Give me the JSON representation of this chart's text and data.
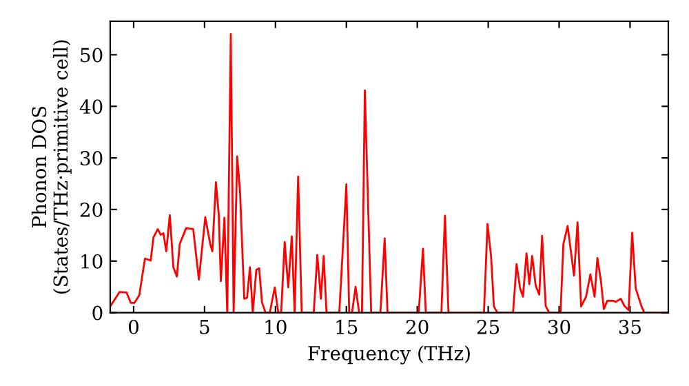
{
  "chart_data": {
    "type": "line",
    "xlabel": "Frequency (THz)",
    "ylabel": "Phonon DOS\n(States/THz·primitive cell)",
    "xlim": [
      -1.65,
      37.7
    ],
    "ylim": [
      0,
      56.5
    ],
    "xticks": [
      0,
      5,
      10,
      15,
      20,
      25,
      30,
      35
    ],
    "yticks": [
      0,
      10,
      20,
      30,
      40,
      50
    ],
    "grid": false,
    "marker": "none",
    "line_style": "solid",
    "series": [
      {
        "color": "#ff0000",
        "x": [
          -1.65,
          -1.0,
          -0.5,
          -0.2,
          0.05,
          0.4,
          0.8,
          1.2,
          1.4,
          1.7,
          1.9,
          2.1,
          2.3,
          2.55,
          2.8,
          3.05,
          3.25,
          3.7,
          4.2,
          4.6,
          5.05,
          5.4,
          5.55,
          5.8,
          6.0,
          6.15,
          6.4,
          6.6,
          6.85,
          7.05,
          7.3,
          7.5,
          7.8,
          8.0,
          8.2,
          8.4,
          8.65,
          8.85,
          9.05,
          9.3,
          9.6,
          9.95,
          10.2,
          10.4,
          10.65,
          10.9,
          11.15,
          11.35,
          11.6,
          11.85,
          12.7,
          12.95,
          13.2,
          13.4,
          13.6,
          14.5,
          15.0,
          15.2,
          15.4,
          15.65,
          15.9,
          16.1,
          16.3,
          16.75,
          17.4,
          17.7,
          17.9,
          20.1,
          20.4,
          20.6,
          21.7,
          21.95,
          22.2,
          24.7,
          24.95,
          25.2,
          25.4,
          25.65,
          26.75,
          27.0,
          27.25,
          27.45,
          27.7,
          27.9,
          28.1,
          28.35,
          28.6,
          28.8,
          29.05,
          29.3,
          30.1,
          30.3,
          30.6,
          31.05,
          31.3,
          31.55,
          31.9,
          32.2,
          32.5,
          32.7,
          32.95,
          33.15,
          33.4,
          33.8,
          34.0,
          34.35,
          34.6,
          34.9,
          35.15,
          35.4,
          35.8,
          36.0,
          37.7
        ],
        "values": [
          1.2,
          4.0,
          3.9,
          1.9,
          1.9,
          3.4,
          10.5,
          10.1,
          14.6,
          16.2,
          15.1,
          15.4,
          11.9,
          18.9,
          8.8,
          7.0,
          13.3,
          16.4,
          16.2,
          6.4,
          18.5,
          13.3,
          11.9,
          25.3,
          19.1,
          6.1,
          18.4,
          0,
          54.0,
          0,
          30.3,
          23.6,
          2.7,
          2.9,
          8.8,
          0,
          8.3,
          8.6,
          2.0,
          0,
          0,
          4.9,
          0,
          0,
          13.7,
          4.9,
          14.8,
          0,
          26.4,
          0,
          0,
          11.2,
          2.7,
          11.0,
          0,
          0,
          24.9,
          0,
          0,
          5.0,
          0,
          0,
          43.1,
          0,
          0,
          14.4,
          0,
          0,
          12.4,
          0,
          0,
          18.8,
          0,
          0,
          17.2,
          11.0,
          1.2,
          0,
          0,
          9.4,
          4.7,
          3.1,
          11.5,
          5.5,
          11.0,
          5.2,
          3.5,
          14.9,
          1.3,
          0,
          0,
          13.3,
          16.8,
          7.2,
          17.5,
          1.2,
          3.1,
          7.4,
          3.1,
          10.6,
          6.1,
          0.7,
          2.3,
          2.3,
          2.1,
          2.7,
          1.3,
          0.5,
          15.5,
          4.7,
          1.3,
          0,
          0
        ]
      }
    ]
  }
}
